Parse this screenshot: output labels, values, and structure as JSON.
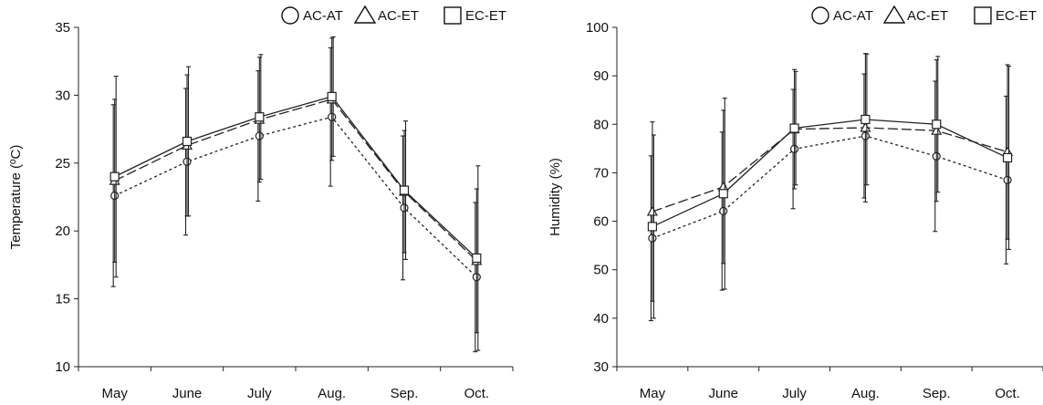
{
  "chart_data": [
    {
      "type": "line",
      "title": "",
      "xlabel": "",
      "ylabel": "Temperature (ºC)",
      "ylim": [
        10,
        35
      ],
      "yticks": [
        10,
        15,
        20,
        25,
        30,
        35
      ],
      "categories": [
        "May",
        "June",
        "July",
        "Aug.",
        "Sep.",
        "Oct."
      ],
      "grid": false,
      "legend_position": "top-right",
      "series": [
        {
          "name": "AC-AT",
          "marker": "circle",
          "line": "dotted",
          "values": [
            22.6,
            25.1,
            27.0,
            28.4,
            21.7,
            16.6
          ],
          "errors": [
            6.7,
            5.4,
            4.8,
            5.1,
            5.3,
            5.5
          ]
        },
        {
          "name": "AC-ET",
          "marker": "triangle",
          "line": "dashed",
          "values": [
            23.7,
            26.3,
            28.2,
            29.7,
            22.9,
            17.8
          ],
          "errors": [
            6.0,
            5.2,
            4.6,
            4.5,
            4.5,
            5.3
          ]
        },
        {
          "name": "EC-ET",
          "marker": "square",
          "line": "solid",
          "values": [
            24.0,
            26.6,
            28.4,
            29.9,
            23.0,
            18.0
          ],
          "errors": [
            7.4,
            5.5,
            4.6,
            4.4,
            5.1,
            6.8
          ]
        }
      ]
    },
    {
      "type": "line",
      "title": "",
      "xlabel": "",
      "ylabel": "Humidity (%)",
      "ylim": [
        30,
        100
      ],
      "yticks": [
        30,
        40,
        50,
        60,
        70,
        80,
        90,
        100
      ],
      "categories": [
        "May",
        "June",
        "July",
        "Aug.",
        "Sep.",
        "Oct."
      ],
      "grid": false,
      "legend_position": "top-right",
      "series": [
        {
          "name": "AC-AT",
          "marker": "circle",
          "line": "dotted",
          "values": [
            56.5,
            62.1,
            74.9,
            77.6,
            73.4,
            68.5
          ],
          "errors": [
            17.0,
            16.3,
            12.3,
            12.8,
            15.5,
            17.3
          ]
        },
        {
          "name": "AC-ET",
          "marker": "triangle",
          "line": "dashed",
          "values": [
            62.0,
            67.1,
            79.0,
            79.3,
            78.7,
            74.3
          ],
          "errors": [
            18.5,
            15.8,
            12.3,
            15.3,
            14.6,
            18.0
          ]
        },
        {
          "name": "EC-ET",
          "marker": "square",
          "line": "solid",
          "values": [
            58.9,
            65.7,
            79.2,
            81.0,
            80.0,
            73.1
          ],
          "errors": [
            18.9,
            19.7,
            11.7,
            13.5,
            14.0,
            18.9
          ]
        }
      ]
    }
  ]
}
